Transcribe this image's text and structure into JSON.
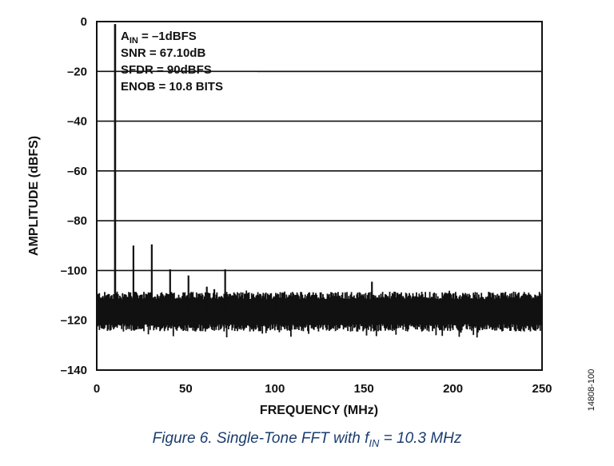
{
  "chart_data": {
    "type": "line",
    "title": "",
    "xlabel": "FREQUENCY (MHz)",
    "ylabel": "AMPLITUDE (dBFS)",
    "xlim": [
      0,
      250
    ],
    "ylim": [
      -140,
      0
    ],
    "xticks": [
      0,
      50,
      100,
      150,
      200,
      250
    ],
    "yticks": [
      0,
      -20,
      -40,
      -60,
      -80,
      -100,
      -120,
      -140
    ],
    "xtick_labels": [
      "0",
      "50",
      "100",
      "150",
      "200",
      "250"
    ],
    "ytick_labels": [
      "0",
      "–20",
      "–40",
      "–60",
      "–80",
      "–100",
      "–120",
      "–140"
    ],
    "horizontal_grid": true,
    "noise_floor": {
      "center": -116,
      "upper": -110,
      "lower": -123,
      "min": -127
    },
    "series": [
      {
        "name": "Single-tone FFT spectrum",
        "peaks": [
          {
            "x": 10.3,
            "y": -1
          },
          {
            "x": 20.6,
            "y": -90
          },
          {
            "x": 30.9,
            "y": -89.5
          },
          {
            "x": 41.2,
            "y": -99.5
          },
          {
            "x": 51.5,
            "y": -102
          },
          {
            "x": 61.8,
            "y": -106.5
          },
          {
            "x": 66.0,
            "y": -107.5
          },
          {
            "x": 72.1,
            "y": -99.5
          },
          {
            "x": 154.5,
            "y": -104.5
          }
        ],
        "spurs": [
          {
            "x": 100.5,
            "y": -109
          },
          {
            "x": 139.5,
            "y": -109.5
          },
          {
            "x": 196.0,
            "y": -109
          }
        ]
      }
    ],
    "annotations": [
      {
        "text": "A",
        "sub": "IN",
        "rest": " = –1dBFS"
      },
      {
        "text": "SNR = 67.10dB"
      },
      {
        "text": "SFDR = 90dBFS"
      },
      {
        "text": "ENOB = 10.8 BITS"
      }
    ],
    "figure_id": "14808-100"
  },
  "caption": {
    "prefix": "Figure 6. Single-Tone FFT with f",
    "sub": "IN",
    "suffix": " = 10.3 MHz"
  }
}
